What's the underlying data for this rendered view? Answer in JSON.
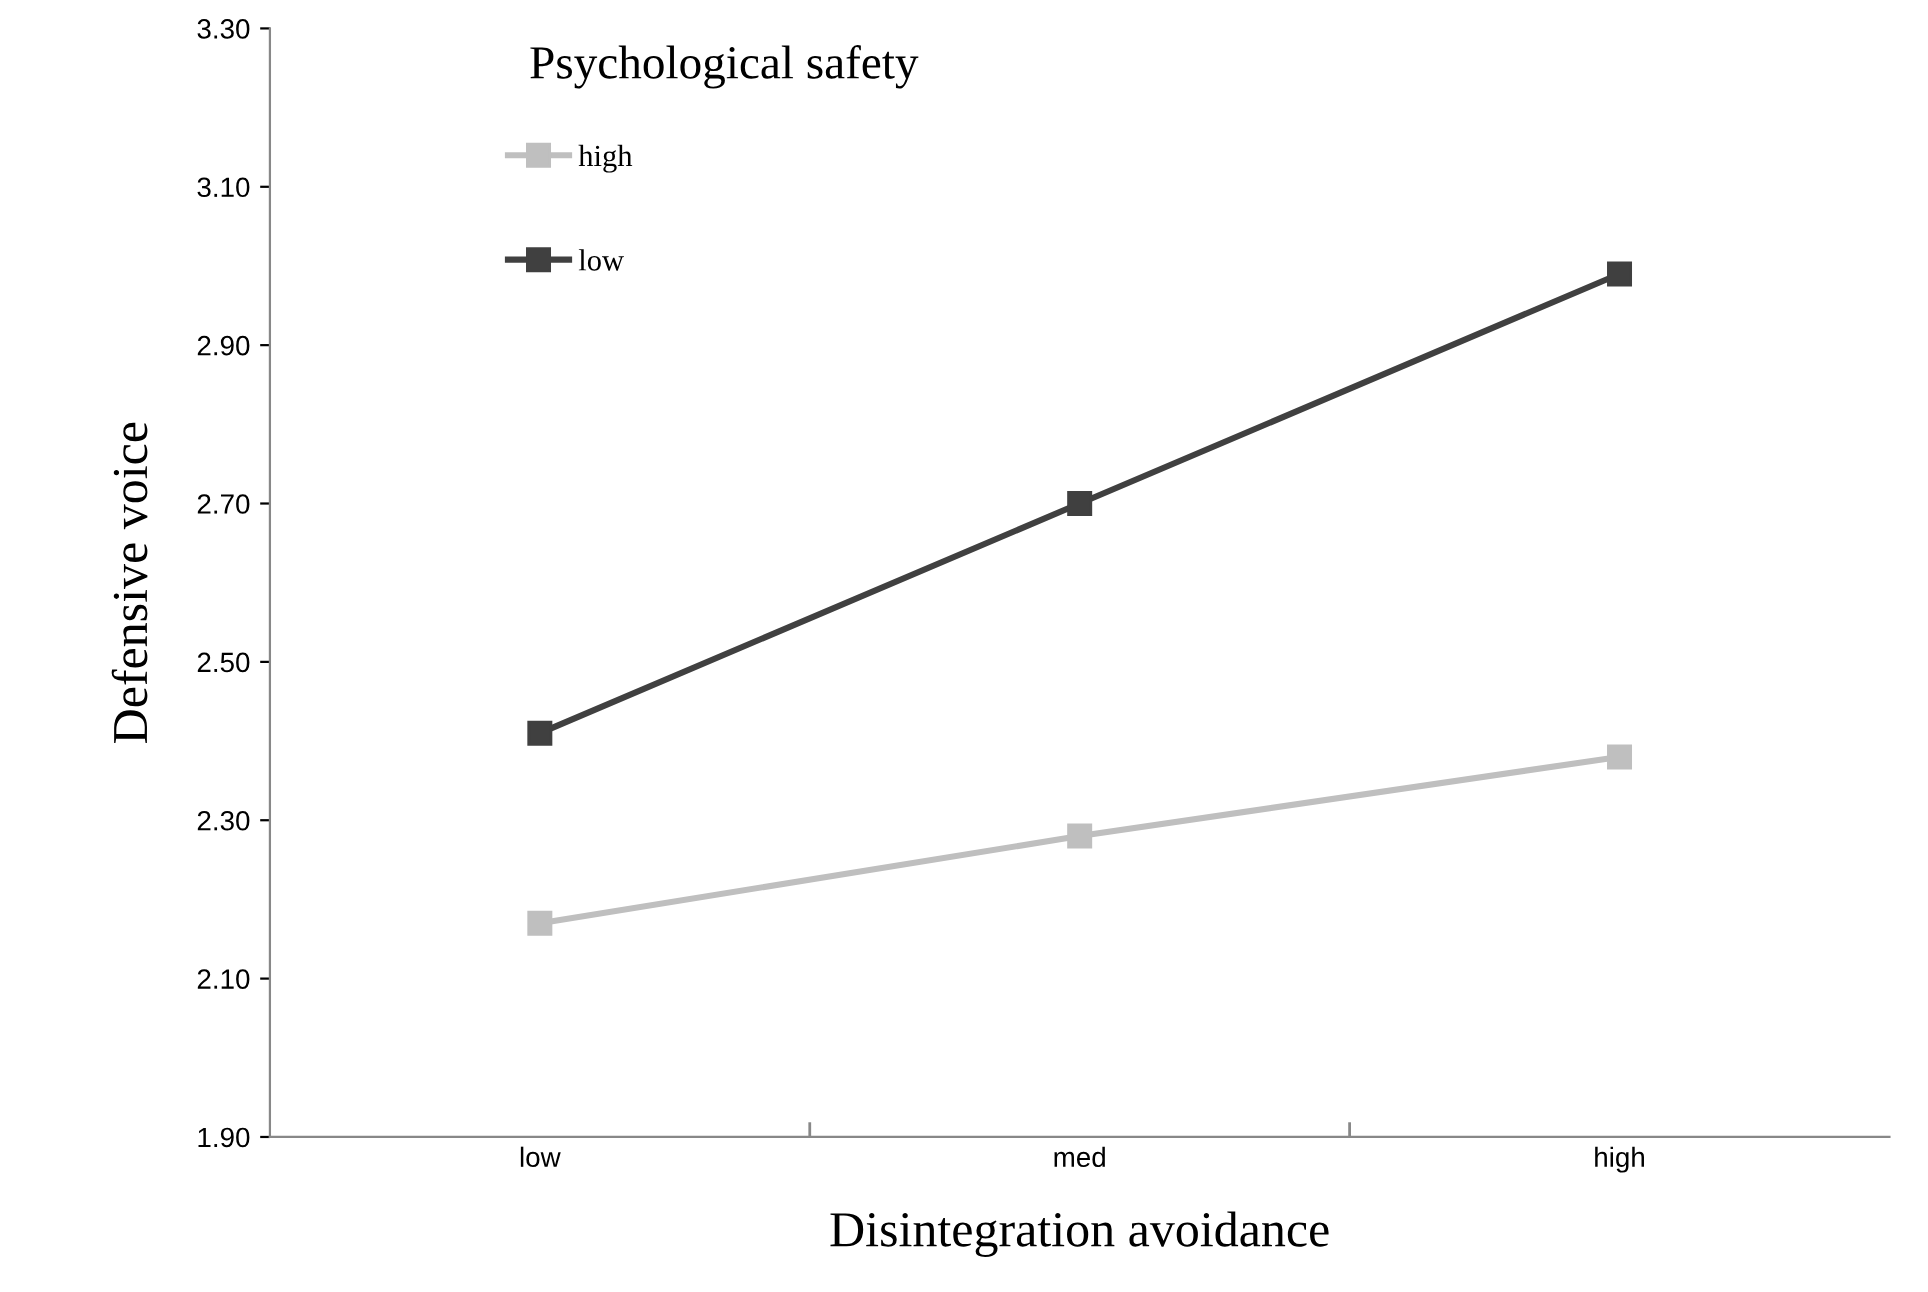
{
  "chart_data": {
    "type": "line",
    "title": "Psychological safety",
    "xlabel": "Disintegration avoidance",
    "ylabel": "Defensive voice",
    "categories": [
      "low",
      "med",
      "high"
    ],
    "series": [
      {
        "name": "high",
        "color": "#bfbfbf",
        "values": [
          2.17,
          2.28,
          2.38
        ]
      },
      {
        "name": "low",
        "color": "#404040",
        "values": [
          2.41,
          2.7,
          2.99
        ]
      }
    ],
    "ylim": [
      1.9,
      3.3
    ],
    "yticks": [
      {
        "value": 1.9,
        "label": "1.90"
      },
      {
        "value": 2.1,
        "label": "2.10"
      },
      {
        "value": 2.3,
        "label": "2.30"
      },
      {
        "value": 2.5,
        "label": "2.50"
      },
      {
        "value": 2.7,
        "label": "2.70"
      },
      {
        "value": 2.9,
        "label": "2.90"
      },
      {
        "value": 3.1,
        "label": "3.10"
      },
      {
        "value": 3.3,
        "label": "3.30"
      }
    ],
    "grid": false,
    "legend": "top left",
    "marker": "square",
    "line_style": "solid"
  }
}
